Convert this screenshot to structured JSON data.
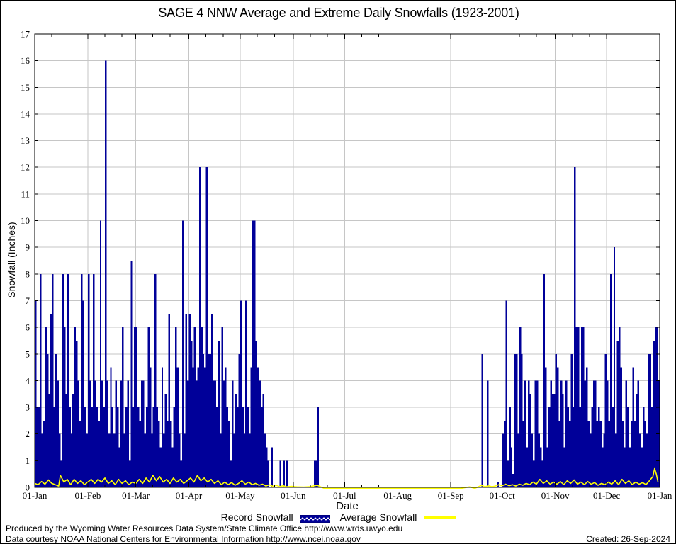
{
  "title": {
    "text": "SAGE 4 NNW Average and Extreme Daily Snowfalls (1923-2001)"
  },
  "y_axis": {
    "label": "Snowfall (Inches)",
    "min": 0,
    "max": 17,
    "tick_step": 1
  },
  "x_axis": {
    "label": "Date",
    "tick_labels": [
      "01-Jan",
      "01-Feb",
      "01-Mar",
      "01-Apr",
      "01-May",
      "01-Jun",
      "01-Jul",
      "01-Aug",
      "01-Sep",
      "01-Oct",
      "01-Nov",
      "01-Dec",
      "01-Jan"
    ],
    "month_day_offsets": [
      0,
      31,
      59,
      90,
      120,
      151,
      181,
      212,
      243,
      273,
      304,
      334,
      365
    ]
  },
  "legend": {
    "record_label": "Record Snowfall",
    "average_label": "Average Snowfall"
  },
  "footer": {
    "line1": "Produced by the Wyoming Water Resources Data System/State Climate Office http://www.wrds.uwyo.edu",
    "line2": "Data courtesy NOAA National Centers for Environmental Information http://www.ncei.noaa.gov",
    "created": "Created: 26-Sep-2024"
  },
  "colors": {
    "record": "#000099",
    "average": "#ffff00",
    "grid": "#c6c6c6",
    "axis": "#000000",
    "background": "#ffffff"
  },
  "chart_data": {
    "type": "bar",
    "title": "SAGE 4 NNW Average and Extreme Daily Snowfalls (1923-2001)",
    "xlabel": "Date",
    "ylabel": "Snowfall (Inches)",
    "ylim": [
      0,
      17
    ],
    "x_unit": "day-of-year (1-365)",
    "grid": true,
    "legend_position": "bottom",
    "series": [
      {
        "name": "Record Snowfall",
        "style": "bar",
        "unit": "inches",
        "daily_values": [
          7,
          3,
          3,
          8,
          2,
          2.5,
          6,
          5,
          3.5,
          6.5,
          8,
          3,
          5,
          4,
          2,
          1,
          8,
          6,
          3.5,
          8,
          3,
          2,
          3.5,
          6,
          5.5,
          4,
          2.5,
          8,
          7,
          3,
          2,
          8,
          4,
          3,
          8,
          4,
          3,
          2.5,
          10,
          4,
          3,
          16,
          4,
          2,
          4.5,
          3,
          2,
          4,
          3,
          1.5,
          4,
          6,
          2,
          3,
          4,
          1,
          8.5,
          3,
          6,
          6,
          3,
          2.5,
          4,
          4,
          2,
          3,
          6,
          4.5,
          2,
          3,
          8,
          3,
          2.5,
          1.5,
          4.5,
          2,
          3.5,
          2.5,
          6.5,
          2.5,
          1.5,
          3,
          6,
          4.5,
          2,
          1,
          10,
          2,
          6.5,
          4,
          6.5,
          5.5,
          4.5,
          6,
          4,
          4.5,
          12,
          6,
          5,
          4.5,
          12,
          5,
          5,
          6.5,
          4,
          4,
          3,
          5.5,
          2,
          6,
          4,
          4.5,
          3,
          2.5,
          1,
          4,
          2,
          3.5,
          3,
          5,
          7,
          3,
          2,
          7,
          3,
          2,
          4.5,
          10,
          10,
          5.5,
          4.5,
          4,
          3,
          3.5,
          2,
          1.5,
          1,
          0,
          1.5,
          0,
          0,
          0,
          0,
          1,
          0,
          1,
          0,
          1,
          0,
          0,
          0,
          0,
          0,
          0,
          0,
          0,
          0,
          0,
          0,
          0,
          0,
          0,
          0,
          1,
          1,
          3,
          0,
          0,
          0,
          0,
          0,
          0,
          0,
          0,
          0,
          0,
          0,
          0,
          0,
          0,
          0,
          0,
          0,
          0,
          0,
          0,
          0,
          0,
          0,
          0,
          0,
          0,
          0,
          0,
          0,
          0,
          0,
          0,
          0,
          0,
          0,
          0,
          0,
          0,
          0,
          0,
          0,
          0,
          0,
          0,
          0,
          0,
          0,
          0,
          0,
          0,
          0,
          0,
          0,
          0,
          0,
          0,
          0,
          0,
          0,
          0,
          0,
          0,
          0,
          0,
          0,
          0,
          0,
          0,
          0,
          0,
          0,
          0,
          0,
          0,
          0,
          0,
          0,
          0,
          0,
          0,
          0,
          0,
          0,
          0,
          0,
          0,
          0,
          0,
          0,
          0,
          0,
          0,
          0,
          0,
          0,
          5,
          0,
          0,
          4,
          0,
          0,
          0,
          0,
          0,
          0.2,
          0,
          0,
          2,
          2.5,
          7,
          1,
          3,
          1.5,
          0.5,
          5,
          5,
          2,
          6,
          5,
          2.5,
          4,
          1.5,
          4,
          3.5,
          2,
          1,
          4,
          4,
          2,
          1.5,
          1,
          8,
          4.5,
          1.5,
          3,
          4,
          3.5,
          3.5,
          5,
          4.5,
          2.5,
          4,
          3.5,
          1.5,
          4,
          3,
          2.5,
          5,
          3,
          12,
          6,
          6,
          3,
          6,
          6,
          4,
          4.5,
          2.5,
          2,
          3,
          4,
          4,
          2.5,
          3,
          2.5,
          1.5,
          2,
          5,
          4,
          2.5,
          8,
          3,
          9,
          2,
          5.5,
          6,
          4.5,
          2.5,
          1.5,
          4,
          3,
          1.5,
          2.5,
          4.5,
          2.5,
          3.5,
          4,
          2,
          1.5,
          3,
          2.5,
          2,
          5,
          5,
          3,
          5.5,
          6,
          6,
          4
        ]
      },
      {
        "name": "Average Snowfall",
        "style": "line",
        "unit": "inches",
        "points": [
          [
            1,
            0.15
          ],
          [
            3,
            0.1
          ],
          [
            5,
            0.22
          ],
          [
            7,
            0.12
          ],
          [
            9,
            0.28
          ],
          [
            11,
            0.15
          ],
          [
            13,
            0.1
          ],
          [
            15,
            0.05
          ],
          [
            16,
            0.45
          ],
          [
            18,
            0.2
          ],
          [
            20,
            0.3
          ],
          [
            22,
            0.1
          ],
          [
            24,
            0.3
          ],
          [
            26,
            0.15
          ],
          [
            28,
            0.25
          ],
          [
            30,
            0.1
          ],
          [
            32,
            0.2
          ],
          [
            34,
            0.3
          ],
          [
            36,
            0.15
          ],
          [
            38,
            0.3
          ],
          [
            40,
            0.2
          ],
          [
            42,
            0.35
          ],
          [
            44,
            0.15
          ],
          [
            46,
            0.25
          ],
          [
            48,
            0.1
          ],
          [
            50,
            0.3
          ],
          [
            52,
            0.15
          ],
          [
            54,
            0.25
          ],
          [
            56,
            0.1
          ],
          [
            58,
            0.2
          ],
          [
            60,
            0.15
          ],
          [
            62,
            0.3
          ],
          [
            64,
            0.15
          ],
          [
            66,
            0.35
          ],
          [
            68,
            0.2
          ],
          [
            70,
            0.45
          ],
          [
            72,
            0.25
          ],
          [
            74,
            0.4
          ],
          [
            76,
            0.2
          ],
          [
            78,
            0.3
          ],
          [
            80,
            0.15
          ],
          [
            82,
            0.35
          ],
          [
            84,
            0.2
          ],
          [
            86,
            0.3
          ],
          [
            88,
            0.15
          ],
          [
            90,
            0.25
          ],
          [
            92,
            0.35
          ],
          [
            94,
            0.2
          ],
          [
            96,
            0.45
          ],
          [
            98,
            0.25
          ],
          [
            100,
            0.35
          ],
          [
            102,
            0.2
          ],
          [
            104,
            0.3
          ],
          [
            106,
            0.15
          ],
          [
            108,
            0.25
          ],
          [
            110,
            0.1
          ],
          [
            112,
            0.2
          ],
          [
            114,
            0.1
          ],
          [
            116,
            0.18
          ],
          [
            118,
            0.08
          ],
          [
            120,
            0.15
          ],
          [
            122,
            0.25
          ],
          [
            124,
            0.12
          ],
          [
            126,
            0.2
          ],
          [
            128,
            0.1
          ],
          [
            130,
            0.15
          ],
          [
            132,
            0.08
          ],
          [
            134,
            0.12
          ],
          [
            136,
            0.05
          ],
          [
            138,
            0.1
          ],
          [
            140,
            0.04
          ],
          [
            142,
            0.08
          ],
          [
            144,
            0.03
          ],
          [
            146,
            0.06
          ],
          [
            148,
            0.02
          ],
          [
            151,
            0.04
          ],
          [
            154,
            0.02
          ],
          [
            158,
            0.01
          ],
          [
            162,
            0.03
          ],
          [
            166,
            0.08
          ],
          [
            168,
            0.02
          ],
          [
            170,
            0
          ],
          [
            180,
            0
          ],
          [
            190,
            0
          ],
          [
            200,
            0
          ],
          [
            210,
            0
          ],
          [
            220,
            0
          ],
          [
            230,
            0
          ],
          [
            240,
            0
          ],
          [
            250,
            0
          ],
          [
            255,
            0.02
          ],
          [
            258,
            0
          ],
          [
            262,
            0.08
          ],
          [
            264,
            0.02
          ],
          [
            266,
            0.06
          ],
          [
            268,
            0.02
          ],
          [
            270,
            0.05
          ],
          [
            272,
            0.1
          ],
          [
            274,
            0.06
          ],
          [
            276,
            0.12
          ],
          [
            278,
            0.06
          ],
          [
            280,
            0.1
          ],
          [
            282,
            0.05
          ],
          [
            284,
            0.12
          ],
          [
            286,
            0.08
          ],
          [
            288,
            0.15
          ],
          [
            290,
            0.1
          ],
          [
            292,
            0.2
          ],
          [
            294,
            0.12
          ],
          [
            296,
            0.3
          ],
          [
            298,
            0.15
          ],
          [
            300,
            0.25
          ],
          [
            302,
            0.12
          ],
          [
            304,
            0.2
          ],
          [
            306,
            0.12
          ],
          [
            308,
            0.22
          ],
          [
            310,
            0.1
          ],
          [
            312,
            0.25
          ],
          [
            314,
            0.15
          ],
          [
            316,
            0.28
          ],
          [
            318,
            0.12
          ],
          [
            320,
            0.2
          ],
          [
            322,
            0.1
          ],
          [
            324,
            0.22
          ],
          [
            326,
            0.12
          ],
          [
            328,
            0.18
          ],
          [
            330,
            0.08
          ],
          [
            332,
            0.15
          ],
          [
            334,
            0.1
          ],
          [
            336,
            0.2
          ],
          [
            338,
            0.12
          ],
          [
            340,
            0.25
          ],
          [
            342,
            0.1
          ],
          [
            344,
            0.3
          ],
          [
            346,
            0.15
          ],
          [
            348,
            0.25
          ],
          [
            350,
            0.1
          ],
          [
            352,
            0.2
          ],
          [
            354,
            0.12
          ],
          [
            356,
            0.18
          ],
          [
            358,
            0.1
          ],
          [
            360,
            0.25
          ],
          [
            362,
            0.4
          ],
          [
            363,
            0.7
          ],
          [
            364,
            0.5
          ],
          [
            365,
            0.2
          ]
        ]
      }
    ]
  }
}
